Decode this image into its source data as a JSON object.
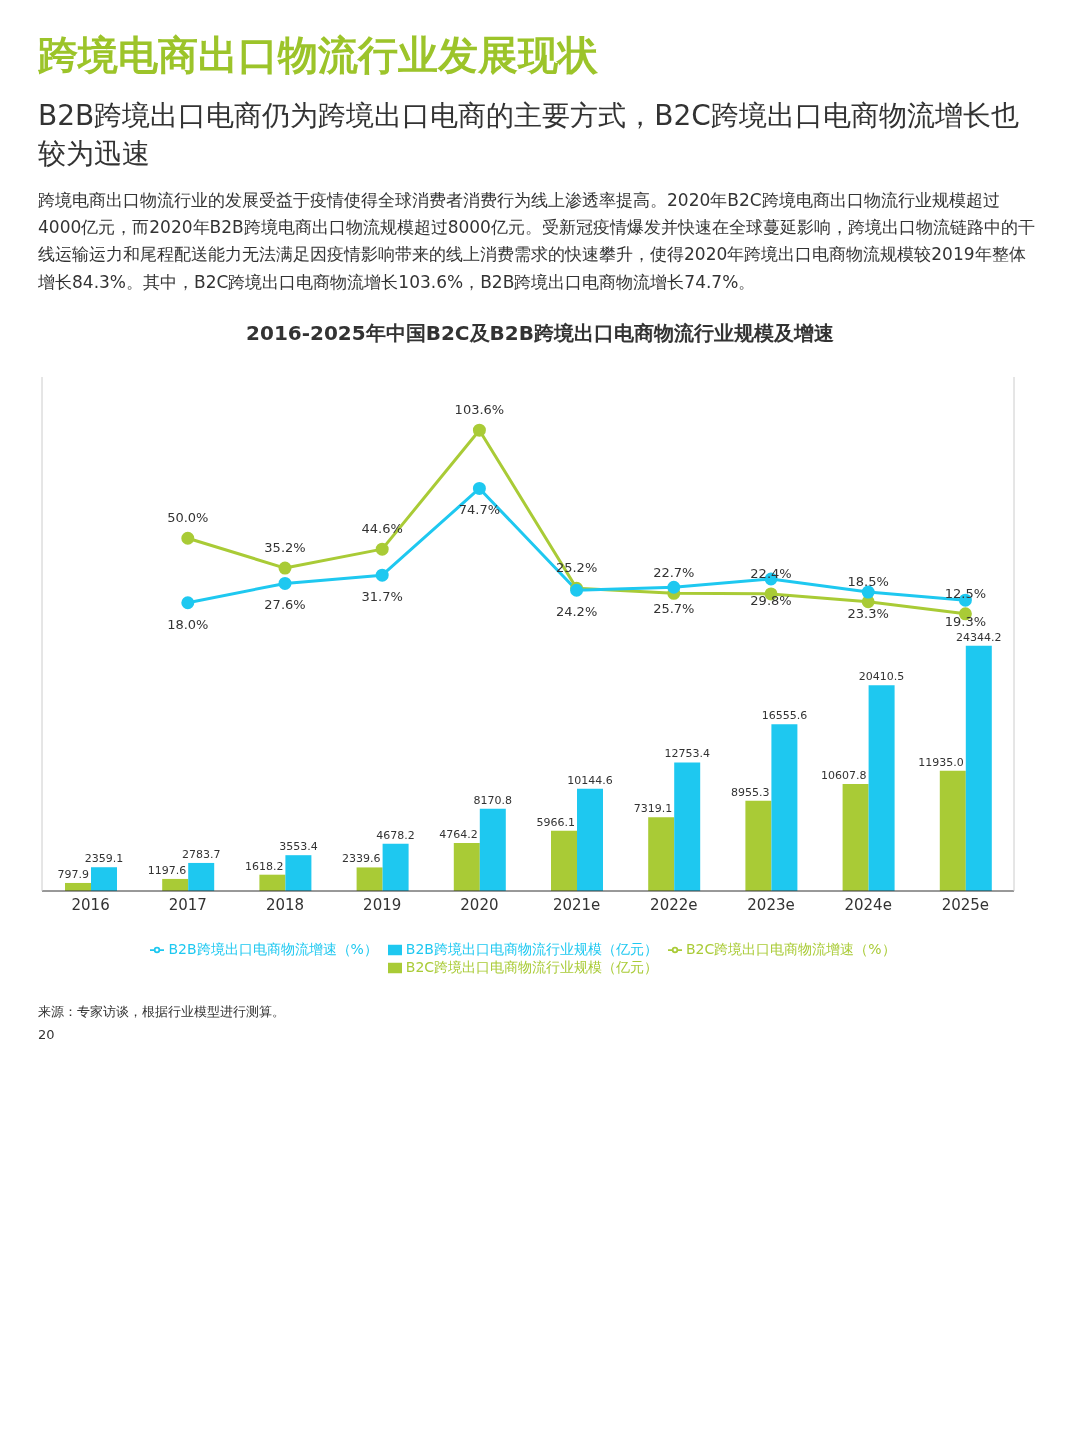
{
  "chart_data": {
    "type": "bar",
    "title": "2016-2025年中国B2C及B2B跨境出口电商物流行业规模及增速",
    "annotations": [
      "跨境电商出口物流行业发展现状",
      "B2B跨境出口电商仍为跨境出口电商的主要方式，B2C跨境出口电商物流增长也较为迅速",
      "跨境电商出口物流行业的发展受益于疫情使得全球消费者消费行为线上渗透率提高。2020年B2C跨境电商出口物流行业规模超过4000亿元，而2020年B2B跨境电商出口物流规模超过8000亿元。受新冠疫情爆发并快速在全球蔓延影响，跨境出口物流链路中的干线运输运力和尾程配送能力无法满足因疫情影响带来的线上消费需求的快速攀升，使得2020年跨境出口电商物流规模较2019年整体增长84.3%。其中，B2C跨境出口电商物流增长103.6%，B2B跨境出口电商物流增长74.7%。",
      "来源：专家访谈，根据行业模型进行测算。",
      "20"
    ],
    "categories": [
      "2016",
      "2017",
      "2018",
      "2019",
      "2020",
      "2021e",
      "2022e",
      "2023e",
      "2024e",
      "2025e"
    ],
    "series": [
      {
        "name": "B2C跨境出口电商物流行业规模（亿元）",
        "color": "#a9cb36",
        "values": [
          797.9,
          1197.6,
          1618.2,
          2339.6,
          4764.2,
          5966.1,
          7319.1,
          8955.3,
          10607.8,
          11935.0
        ],
        "value_labels": [
          "797.9",
          "1197.6",
          "1618.2",
          "2339.6",
          "4764.2",
          "5966.1",
          "7319.1",
          "8955.3",
          "10607.8",
          "11935.0"
        ]
      },
      {
        "name": "B2B跨境出口电商物流行业规模（亿元）",
        "color": "#1ec8f0",
        "values": [
          2359.1,
          2783.7,
          3553.4,
          4678.2,
          8170.8,
          10144.6,
          12753.4,
          16555.6,
          20410.5,
          24344.2
        ],
        "value_labels": [
          "2359.1",
          "2783.7",
          "3553.4",
          "4678.2",
          "8170.8",
          "10144.6",
          "12753.4",
          "16555.6",
          "20410.5",
          "24344.2"
        ]
      },
      {
        "name": "B2C跨境出口电商物流增速（%）",
        "type": "line",
        "axis": "y2",
        "color": "#a9cb36",
        "values": [
          null,
          50.0,
          35.2,
          44.6,
          103.6,
          25.2,
          22.7,
          22.4,
          18.5,
          12.5
        ],
        "value_labels": [
          null,
          "50.0%",
          "35.2%",
          "44.6%",
          "103.6%",
          "25.2%",
          "22.7%",
          "22.4%",
          "18.5%",
          "12.5%"
        ]
      },
      {
        "name": "B2B跨境出口电商物流增速（%）",
        "type": "line",
        "axis": "y2",
        "color": "#1ec8f0",
        "values": [
          null,
          18.0,
          27.6,
          31.7,
          74.7,
          24.2,
          25.7,
          29.8,
          23.3,
          19.3
        ],
        "value_labels": [
          null,
          "18.0%",
          "27.6%",
          "31.7%",
          "74.7%",
          "24.2%",
          "25.7%",
          "29.8%",
          "23.3%",
          "19.3%"
        ]
      }
    ],
    "ylim": [
      0,
      51000
    ],
    "y2lim": [
      -125,
      130
    ],
    "legend": "bottom",
    "marker": "circle",
    "line_style": "solid"
  }
}
